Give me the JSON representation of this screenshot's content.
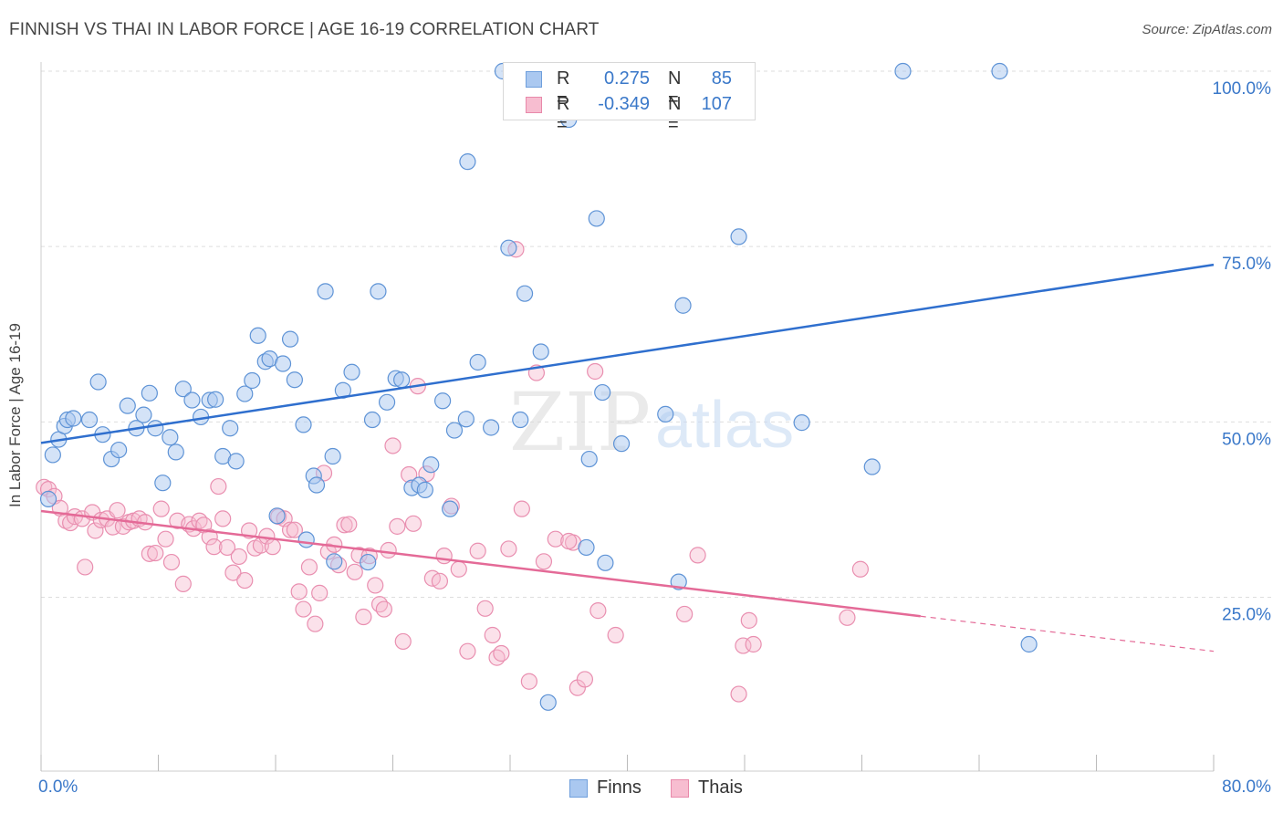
{
  "header": {
    "title": "FINNISH VS THAI IN LABOR FORCE | AGE 16-19 CORRELATION CHART",
    "source": "Source: ZipAtlas.com"
  },
  "watermark": {
    "zip": "ZIP",
    "atlas": "atlas"
  },
  "stats": [
    {
      "series": "Finns",
      "r_label": "R =",
      "r_value": "0.275",
      "n_label": "N =",
      "n_value": "85",
      "color": "#aac8f0",
      "border": "#6f9fdc"
    },
    {
      "series": "Thais",
      "r_label": "R =",
      "r_value": "-0.349",
      "n_label": "N =",
      "n_value": "107",
      "color": "#f7bdd0",
      "border": "#e889aa"
    }
  ],
  "legend": [
    {
      "label": "Finns",
      "color": "#aac8f0",
      "border": "#6f9fdc"
    },
    {
      "label": "Thais",
      "color": "#f7bdd0",
      "border": "#e889aa"
    }
  ],
  "colors": {
    "finns_fill": "#aac8f0",
    "finns_stroke": "#5e93d6",
    "finns_line": "#2f6fce",
    "thais_fill": "#f7bdd0",
    "thais_stroke": "#e98fb0",
    "thais_line": "#e46a97",
    "grid": "#dddddd",
    "tick_label": "#3a78c9"
  },
  "chart_data": {
    "type": "scatter",
    "title": "FINNISH VS THAI IN LABOR FORCE | AGE 16-19 CORRELATION CHART",
    "xlabel": "",
    "ylabel": "In Labor Force | Age 16-19",
    "xlim": [
      0,
      80
    ],
    "ylim": [
      0,
      105
    ],
    "x_tick_labels": [
      "0.0%",
      "80.0%"
    ],
    "y_ticks": [
      25,
      50,
      75,
      100
    ],
    "y_tick_labels": [
      "25.0%",
      "50.0%",
      "75.0%",
      "100.0%"
    ],
    "grid": true,
    "legend_position": "bottom-center",
    "series": [
      {
        "name": "Finns",
        "trend": {
          "x": [
            0,
            80
          ],
          "y": [
            47.0,
            72.4
          ]
        },
        "points": [
          [
            0.5,
            39
          ],
          [
            0.8,
            45.3
          ],
          [
            1.2,
            47.5
          ],
          [
            1.6,
            49.4
          ],
          [
            1.8,
            50.3
          ],
          [
            2.2,
            50.5
          ],
          [
            3.3,
            50.3
          ],
          [
            3.9,
            55.7
          ],
          [
            4.2,
            48.2
          ],
          [
            4.8,
            44.7
          ],
          [
            5.3,
            46
          ],
          [
            5.9,
            52.3
          ],
          [
            6.5,
            49.1
          ],
          [
            7,
            51
          ],
          [
            7.4,
            54.1
          ],
          [
            7.8,
            49.1
          ],
          [
            8.3,
            41.3
          ],
          [
            8.8,
            47.8
          ],
          [
            9.2,
            45.7
          ],
          [
            9.7,
            54.7
          ],
          [
            10.3,
            53.1
          ],
          [
            10.9,
            50.7
          ],
          [
            11.5,
            53.1
          ],
          [
            11.9,
            53.2
          ],
          [
            12.4,
            45.1
          ],
          [
            12.9,
            49.1
          ],
          [
            13.3,
            44.4
          ],
          [
            13.9,
            54
          ],
          [
            14.4,
            55.9
          ],
          [
            14.8,
            62.3
          ],
          [
            15.3,
            58.6
          ],
          [
            15.6,
            59
          ],
          [
            16.5,
            58.3
          ],
          [
            17.0,
            61.8
          ],
          [
            17.3,
            56
          ],
          [
            17.9,
            49.6
          ],
          [
            18.6,
            42.3
          ],
          [
            18.8,
            41.0
          ],
          [
            19.4,
            68.6
          ],
          [
            19.9,
            45.1
          ],
          [
            20.6,
            54.5
          ],
          [
            21.2,
            57.1
          ],
          [
            22.6,
            50.3
          ],
          [
            23.0,
            68.6
          ],
          [
            23.6,
            52.8
          ],
          [
            24.2,
            56.2
          ],
          [
            24.6,
            56.0
          ],
          [
            25.3,
            40.6
          ],
          [
            25.8,
            41.0
          ],
          [
            26.2,
            40.3
          ],
          [
            26.6,
            43.9
          ],
          [
            27.4,
            53.0
          ],
          [
            27.9,
            37.6
          ],
          [
            28.2,
            48.8
          ],
          [
            29.0,
            50.4
          ],
          [
            29.1,
            87.1
          ],
          [
            29.8,
            58.5
          ],
          [
            30.7,
            49.2
          ],
          [
            31.5,
            100.0
          ],
          [
            31.9,
            74.8
          ],
          [
            32.7,
            50.3
          ],
          [
            33.0,
            68.3
          ],
          [
            34.1,
            60.0
          ],
          [
            34.6,
            10.0
          ],
          [
            35.1,
            100.0
          ],
          [
            36.0,
            93.1
          ],
          [
            37.2,
            32.1
          ],
          [
            37.4,
            44.7
          ],
          [
            37.9,
            79.0
          ],
          [
            38.3,
            54.2
          ],
          [
            38.5,
            29.9
          ],
          [
            39.6,
            46.9
          ],
          [
            42.6,
            51.1
          ],
          [
            43.5,
            27.2
          ],
          [
            43.8,
            66.6
          ],
          [
            47.6,
            76.4
          ],
          [
            51.9,
            49.9
          ],
          [
            56.7,
            43.6
          ],
          [
            58.8,
            100.0
          ],
          [
            65.4,
            100.0
          ],
          [
            67.4,
            18.3
          ],
          [
            20.0,
            30.1
          ],
          [
            16.1,
            36.6
          ],
          [
            22.3,
            30.0
          ],
          [
            18.1,
            33.2
          ]
        ]
      },
      {
        "name": "Thais",
        "trend": {
          "x": [
            0,
            60,
            80
          ],
          "y": [
            37.3,
            22.3,
            17.3
          ]
        },
        "points": [
          [
            0.2,
            40.7
          ],
          [
            0.5,
            40.4
          ],
          [
            0.9,
            39.4
          ],
          [
            1.3,
            37.7
          ],
          [
            1.7,
            35.9
          ],
          [
            2.0,
            35.6
          ],
          [
            2.3,
            36.5
          ],
          [
            2.8,
            36.2
          ],
          [
            3.0,
            29.3
          ],
          [
            3.5,
            37.1
          ],
          [
            3.7,
            34.5
          ],
          [
            4.1,
            36.0
          ],
          [
            4.5,
            36.2
          ],
          [
            4.9,
            35.0
          ],
          [
            5.2,
            37.4
          ],
          [
            5.6,
            35.1
          ],
          [
            6.0,
            35.7
          ],
          [
            6.3,
            35.9
          ],
          [
            6.7,
            36.2
          ],
          [
            7.1,
            35.7
          ],
          [
            7.4,
            31.2
          ],
          [
            7.8,
            31.3
          ],
          [
            8.2,
            37.6
          ],
          [
            8.5,
            33.3
          ],
          [
            8.9,
            30.0
          ],
          [
            9.3,
            35.9
          ],
          [
            9.7,
            26.9
          ],
          [
            10.1,
            35.4
          ],
          [
            10.4,
            34.8
          ],
          [
            10.8,
            35.9
          ],
          [
            11.1,
            35.3
          ],
          [
            11.5,
            33.6
          ],
          [
            11.8,
            32.2
          ],
          [
            12.1,
            40.8
          ],
          [
            12.4,
            36.2
          ],
          [
            12.7,
            32.1
          ],
          [
            13.1,
            28.5
          ],
          [
            13.5,
            30.8
          ],
          [
            13.9,
            27.4
          ],
          [
            14.2,
            34.5
          ],
          [
            14.6,
            32.0
          ],
          [
            15.0,
            32.4
          ],
          [
            15.4,
            33.7
          ],
          [
            15.8,
            32.2
          ],
          [
            16.2,
            36.5
          ],
          [
            16.6,
            36.2
          ],
          [
            17.0,
            34.6
          ],
          [
            17.3,
            34.6
          ],
          [
            17.6,
            25.8
          ],
          [
            17.9,
            23.3
          ],
          [
            18.3,
            29.3
          ],
          [
            18.7,
            21.2
          ],
          [
            19.0,
            25.6
          ],
          [
            19.3,
            42.7
          ],
          [
            19.6,
            31.5
          ],
          [
            20.0,
            32.5
          ],
          [
            20.3,
            29.6
          ],
          [
            20.7,
            35.3
          ],
          [
            21.0,
            35.4
          ],
          [
            21.4,
            28.6
          ],
          [
            21.7,
            31.0
          ],
          [
            22.0,
            22.2
          ],
          [
            22.4,
            30.9
          ],
          [
            22.8,
            26.7
          ],
          [
            23.1,
            24.0
          ],
          [
            23.4,
            23.3
          ],
          [
            23.7,
            31.7
          ],
          [
            24.0,
            46.6
          ],
          [
            24.3,
            35.1
          ],
          [
            24.7,
            18.7
          ],
          [
            25.1,
            42.5
          ],
          [
            25.4,
            35.5
          ],
          [
            25.7,
            55.1
          ],
          [
            26.3,
            42.6
          ],
          [
            26.7,
            27.7
          ],
          [
            27.2,
            27.3
          ],
          [
            27.5,
            30.9
          ],
          [
            28.0,
            38.0
          ],
          [
            28.5,
            29.0
          ],
          [
            29.1,
            17.3
          ],
          [
            29.8,
            31.6
          ],
          [
            30.3,
            23.4
          ],
          [
            30.8,
            19.6
          ],
          [
            31.1,
            16.4
          ],
          [
            31.4,
            17.0
          ],
          [
            31.9,
            31.9
          ],
          [
            32.4,
            74.6
          ],
          [
            32.8,
            37.6
          ],
          [
            33.3,
            13.0
          ],
          [
            33.8,
            57.0
          ],
          [
            34.3,
            30.1
          ],
          [
            35.1,
            33.3
          ],
          [
            36.3,
            32.8
          ],
          [
            36.6,
            12.1
          ],
          [
            37.1,
            13.3
          ],
          [
            37.8,
            57.2
          ],
          [
            38.0,
            23.1
          ],
          [
            39.2,
            19.6
          ],
          [
            43.9,
            22.6
          ],
          [
            44.8,
            31.0
          ],
          [
            47.6,
            11.2
          ],
          [
            47.9,
            18.1
          ],
          [
            48.3,
            21.7
          ],
          [
            48.6,
            18.3
          ],
          [
            55.0,
            22.1
          ],
          [
            55.9,
            29.0
          ],
          [
            36.0,
            33.0
          ]
        ]
      }
    ]
  }
}
